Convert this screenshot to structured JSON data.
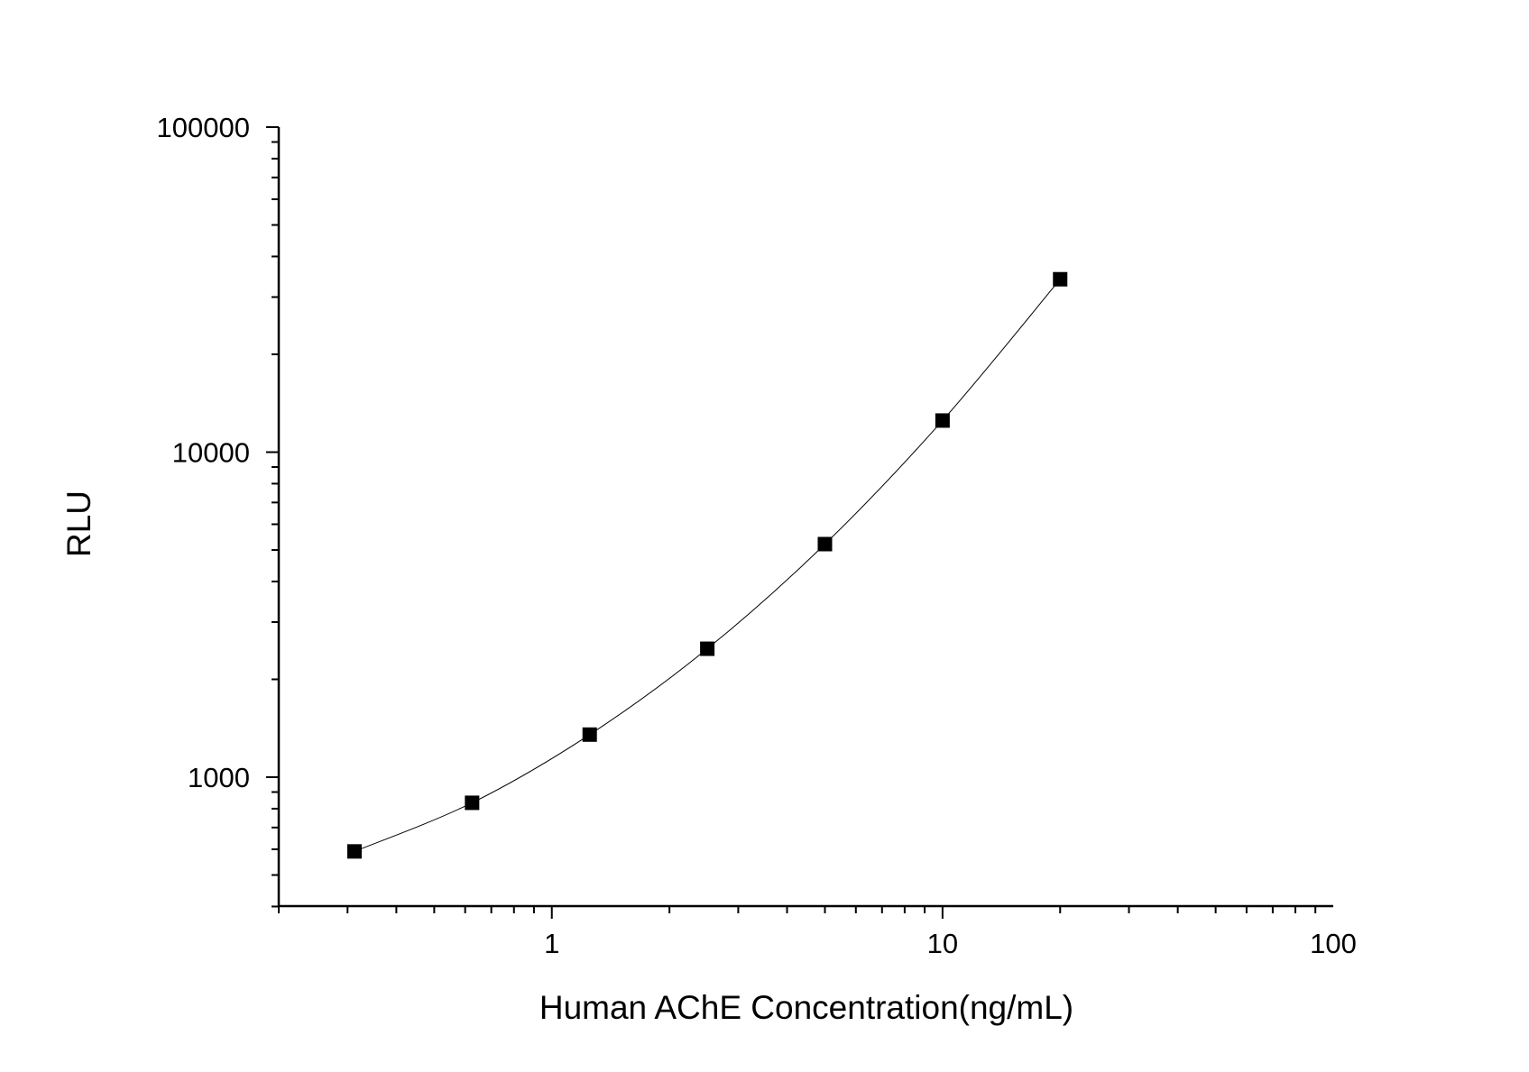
{
  "chart_data": {
    "type": "line",
    "title": "",
    "xlabel": "Human AChE Concentration(ng/mL)",
    "ylabel": "RLU",
    "x_scale": "log",
    "y_scale": "log",
    "xlim": [
      0.2,
      100
    ],
    "ylim": [
      400,
      100000
    ],
    "x_ticks": [
      1,
      10,
      100
    ],
    "x_tick_labels": [
      "1",
      "10",
      "100"
    ],
    "y_ticks": [
      1000,
      10000,
      100000
    ],
    "y_tick_labels": [
      "1000",
      "10000",
      "100000"
    ],
    "grid": false,
    "legend": "none",
    "marker": "square",
    "color": "#000000",
    "series": [
      {
        "x": [
          0.3125,
          0.625,
          1.25,
          2.5,
          5,
          10,
          20
        ],
        "y": [
          591,
          834,
          1352,
          2484,
          5213,
          12510,
          34040
        ]
      }
    ]
  }
}
